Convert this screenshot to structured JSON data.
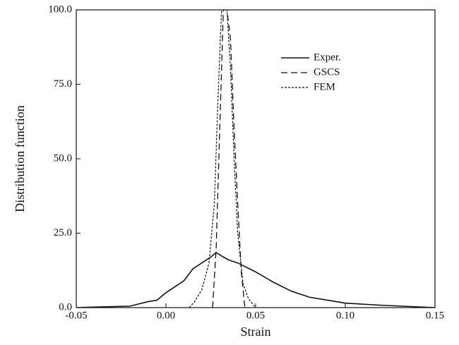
{
  "chart_data": {
    "type": "line",
    "x_label": "Strain",
    "y_label": "Distribution function",
    "xlim": [
      -0.05,
      0.15
    ],
    "ylim": [
      0,
      100
    ],
    "xticks": [
      {
        "value": -0.05,
        "label": "-0.05"
      },
      {
        "value": 0,
        "label": "0.00"
      },
      {
        "value": 0.05,
        "label": "0.05"
      },
      {
        "value": 0.1,
        "label": "0.10"
      },
      {
        "value": 0.15,
        "label": "0.15"
      }
    ],
    "yticks": [
      {
        "value": 0,
        "label": "0.0"
      },
      {
        "value": 25,
        "label": "25.0"
      },
      {
        "value": 50,
        "label": "50.0"
      },
      {
        "value": 75,
        "label": "75.0"
      },
      {
        "value": 100,
        "label": "100.0"
      }
    ],
    "legend": "upper right",
    "series": [
      {
        "name": "Exper.",
        "color": "#111111",
        "style": "solid",
        "x": [
          -0.05,
          -0.02,
          -0.01,
          -0.005,
          0,
          0.005,
          0.01,
          0.015,
          0.02,
          0.025,
          0.028,
          0.032,
          0.035,
          0.04,
          0.05,
          0.06,
          0.07,
          0.08,
          0.09,
          0.1,
          0.12,
          0.15
        ],
        "values": [
          0,
          0.5,
          2,
          2.5,
          5,
          7,
          9,
          13,
          15,
          17,
          18.5,
          17,
          16,
          15,
          12,
          8.5,
          5.5,
          3.5,
          2.5,
          1.5,
          0.8,
          0
        ]
      },
      {
        "name": "GSCS",
        "color": "#111111",
        "style": "dashed",
        "x": [
          0.026,
          0.028,
          0.03,
          0.032,
          0.034,
          0.036,
          0.038,
          0.04,
          0.042,
          0.044
        ],
        "values": [
          0,
          20,
          60,
          100,
          100,
          90,
          60,
          35,
          12,
          0
        ]
      },
      {
        "name": "FEM",
        "color": "#111111",
        "style": "dotted",
        "x": [
          0.013,
          0.016,
          0.02,
          0.024,
          0.027,
          0.029,
          0.031,
          0.034,
          0.036,
          0.038,
          0.04,
          0.043,
          0.046,
          0.05
        ],
        "values": [
          0,
          2,
          6,
          15,
          35,
          70,
          100,
          100,
          80,
          50,
          25,
          8,
          3,
          0
        ]
      }
    ]
  }
}
